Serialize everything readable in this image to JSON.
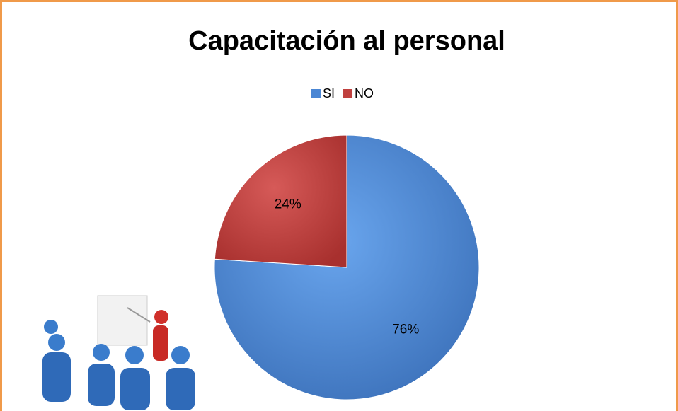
{
  "chart_data": {
    "type": "pie",
    "title": "Capacitación al personal",
    "categories": [
      "SI",
      "NO"
    ],
    "values": [
      76,
      24
    ],
    "value_labels": [
      "76%",
      "24%"
    ],
    "colors": [
      "#4a86d4",
      "#c0403e"
    ],
    "legend": "top"
  }
}
